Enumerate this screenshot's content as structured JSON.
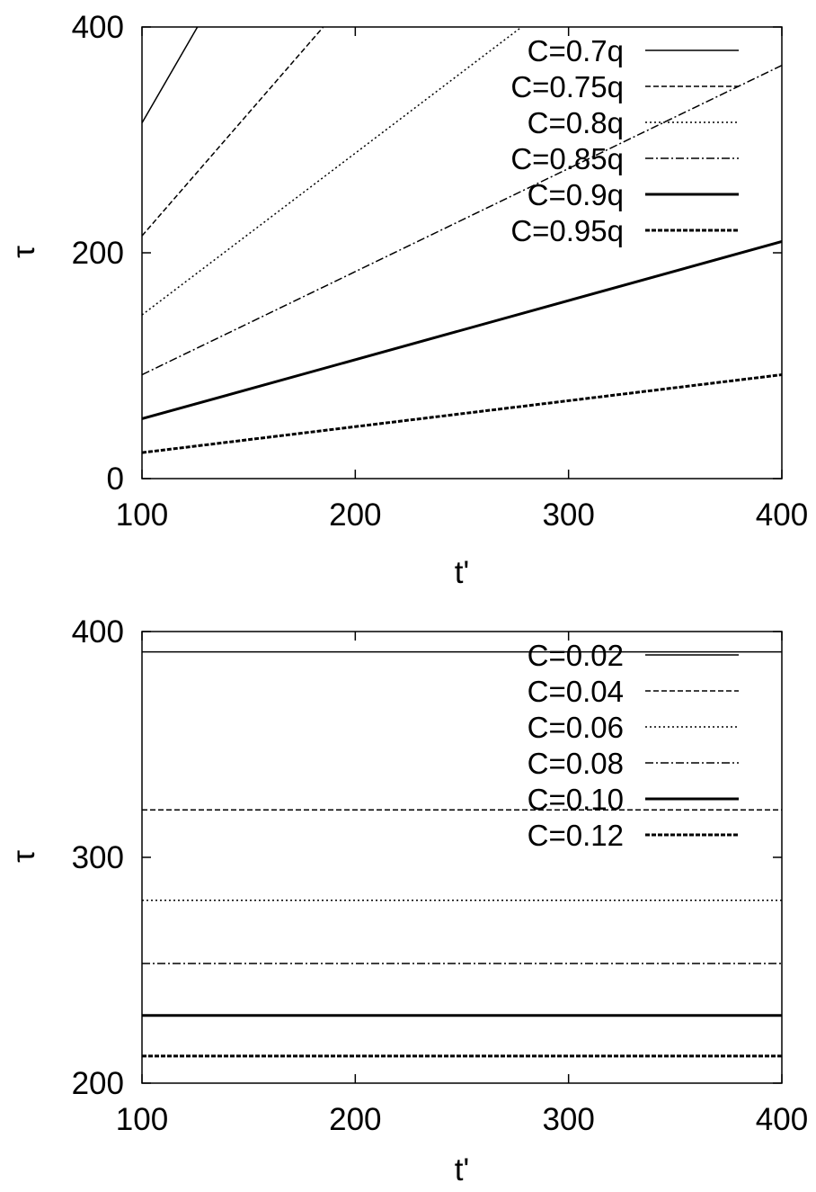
{
  "chart_data": [
    {
      "type": "line",
      "title": "",
      "xlabel": "t'",
      "ylabel": "τ",
      "xlim": [
        100,
        400
      ],
      "ylim": [
        0,
        400
      ],
      "xticks": [
        100,
        200,
        300,
        400
      ],
      "yticks": [
        0,
        200,
        400
      ],
      "xtick_labels": [
        "100",
        "200",
        "300",
        "400"
      ],
      "ytick_labels": [
        "0",
        "200",
        "400"
      ],
      "grid": false,
      "legend_position": "top-right",
      "series": [
        {
          "name": "C=0.7q",
          "x": [
            100,
            126
          ],
          "y": [
            315,
            400
          ],
          "style": "solid"
        },
        {
          "name": "C=0.75q",
          "x": [
            100,
            185
          ],
          "y": [
            215,
            400
          ],
          "style": "dash"
        },
        {
          "name": "C=0.8q",
          "x": [
            100,
            278
          ],
          "y": [
            145,
            400
          ],
          "style": "dot"
        },
        {
          "name": "C=0.85q",
          "x": [
            100,
            400
          ],
          "y": [
            92,
            366
          ],
          "style": "dashdot"
        },
        {
          "name": "C=0.9q",
          "x": [
            100,
            400
          ],
          "y": [
            53,
            210
          ],
          "style": "solid-thick"
        },
        {
          "name": "C=0.95q",
          "x": [
            100,
            400
          ],
          "y": [
            23,
            92
          ],
          "style": "dash-thick"
        }
      ]
    },
    {
      "type": "line",
      "title": "",
      "xlabel": "t'",
      "ylabel": "τ",
      "xlim": [
        100,
        400
      ],
      "ylim": [
        200,
        400
      ],
      "xticks": [
        100,
        200,
        300,
        400
      ],
      "yticks": [
        200,
        300,
        400
      ],
      "xtick_labels": [
        "100",
        "200",
        "300",
        "400"
      ],
      "ytick_labels": [
        "200",
        "300",
        "400"
      ],
      "grid": false,
      "legend_position": "top-right",
      "series": [
        {
          "name": "C=0.02",
          "x": [
            100,
            400
          ],
          "y": [
            391,
            391
          ],
          "style": "solid"
        },
        {
          "name": "C=0.04",
          "x": [
            100,
            400
          ],
          "y": [
            321,
            321
          ],
          "style": "dash"
        },
        {
          "name": "C=0.06",
          "x": [
            100,
            400
          ],
          "y": [
            281,
            281
          ],
          "style": "dot"
        },
        {
          "name": "C=0.08",
          "x": [
            100,
            400
          ],
          "y": [
            253,
            253
          ],
          "style": "dashdot"
        },
        {
          "name": "C=0.10",
          "x": [
            100,
            400
          ],
          "y": [
            230,
            230
          ],
          "style": "solid-thick"
        },
        {
          "name": "C=0.12",
          "x": [
            100,
            400
          ],
          "y": [
            212,
            212
          ],
          "style": "dash-thick"
        }
      ]
    }
  ]
}
